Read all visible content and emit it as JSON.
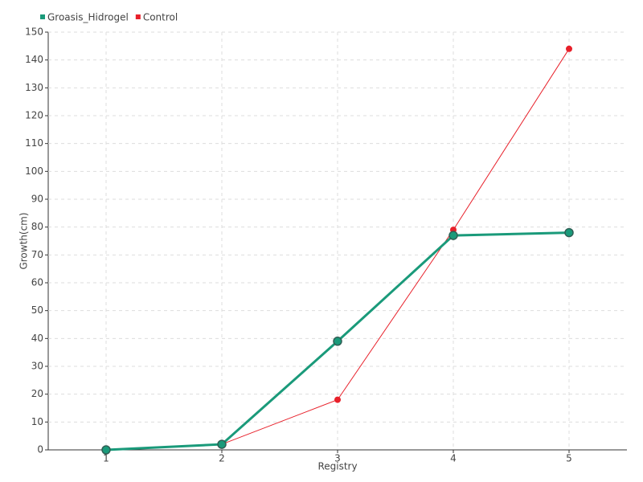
{
  "chart_data": {
    "type": "line",
    "x_label": "Registry",
    "y_label": "Growth(cm)",
    "categories": [
      "1",
      "2",
      "3",
      "4",
      "5"
    ],
    "series": [
      {
        "name": "Groasis_Hidrogel",
        "color": "#1a9a7a",
        "values": [
          0,
          2,
          39,
          77,
          78
        ]
      },
      {
        "name": "Control",
        "color": "#e8202a",
        "values": [
          0,
          2,
          18,
          79,
          144
        ]
      }
    ],
    "ylim": [
      0,
      150
    ],
    "yticks": [
      0,
      10,
      20,
      30,
      40,
      50,
      60,
      70,
      80,
      90,
      100,
      110,
      120,
      130,
      140,
      150
    ],
    "grid": true,
    "legend": "top-left"
  }
}
